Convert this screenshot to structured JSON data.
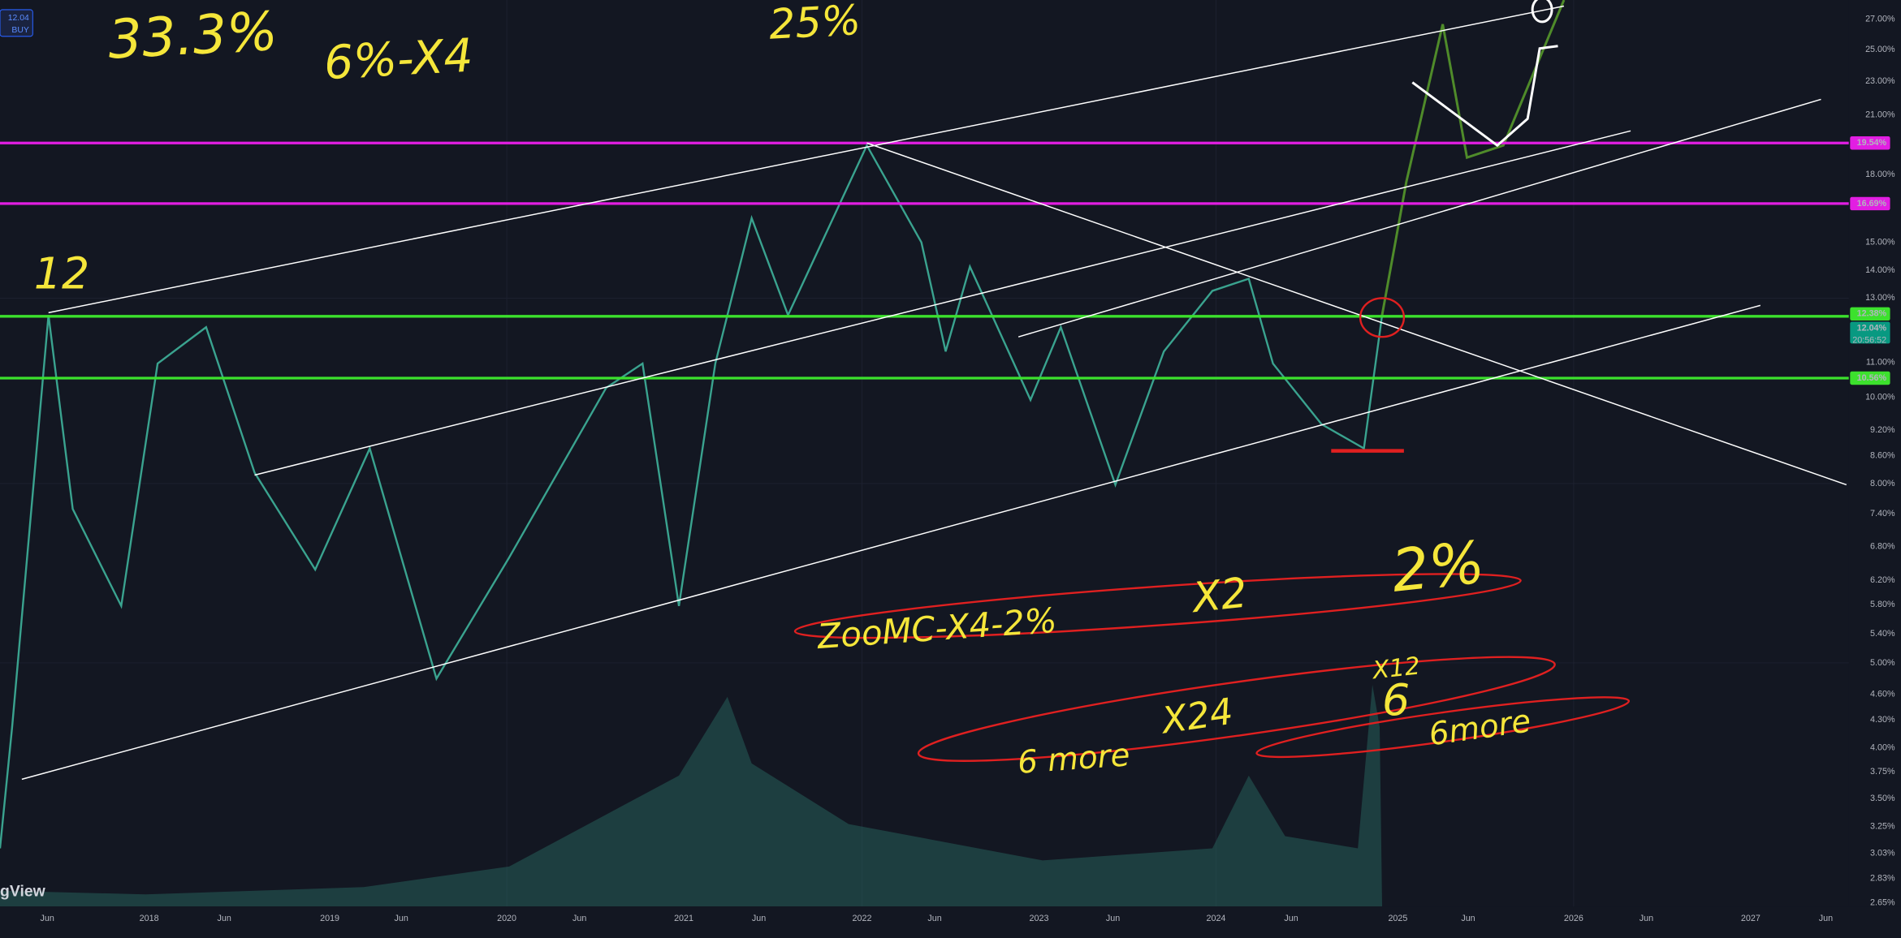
{
  "header": {
    "badge_price": "12.04",
    "badge_action": "BUY",
    "watermark": "gView"
  },
  "annotations": [
    "33.3%",
    "6%-X4",
    "25%",
    "12",
    "2%",
    "X2",
    "ZooMC-X4-2%",
    "X12",
    "X24",
    "6",
    "6more",
    "6 more"
  ],
  "price_axis": {
    "labels": [
      "27.00%",
      "25.00%",
      "23.00%",
      "21.00%",
      "18.00%",
      "15.00%",
      "14.00%",
      "13.00%",
      "11.00%",
      "10.00%",
      "9.20%",
      "8.60%",
      "8.00%",
      "7.40%",
      "6.80%",
      "6.20%",
      "5.80%",
      "5.40%",
      "5.00%",
      "4.60%",
      "4.30%",
      "4.00%",
      "3.75%",
      "3.50%",
      "3.25%",
      "3.03%",
      "2.83%",
      "2.65%"
    ],
    "badges": [
      {
        "label": "19.54%",
        "color": "#e21ee2"
      },
      {
        "label": "16.69%",
        "color": "#e21ee2"
      },
      {
        "label": "12.38%",
        "color": "#3ce12d"
      },
      {
        "label": "12.04%",
        "color": "#089981"
      },
      {
        "label": "10.56%",
        "color": "#3ce12d"
      }
    ],
    "countdown": "20:56:52"
  },
  "time_axis": {
    "labels": [
      "Jun",
      "2018",
      "Jun",
      "2019",
      "Jun",
      "2020",
      "Jun",
      "2021",
      "Jun",
      "2022",
      "Jun",
      "2023",
      "Jun",
      "2024",
      "Jun",
      "2025",
      "Jun",
      "2026",
      "Jun",
      "2027",
      "Jun"
    ]
  }
}
